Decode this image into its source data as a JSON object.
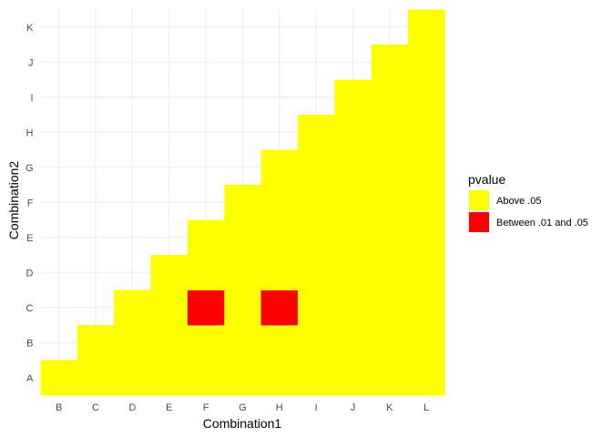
{
  "chart_data": {
    "type": "heatmap",
    "title": "",
    "xlabel": "Combination1",
    "ylabel": "Combination2",
    "x_categories": [
      "B",
      "C",
      "D",
      "E",
      "F",
      "G",
      "H",
      "I",
      "J",
      "K",
      "L"
    ],
    "y_categories": [
      "A",
      "B",
      "C",
      "D",
      "E",
      "F",
      "G",
      "H",
      "I",
      "J",
      "K"
    ],
    "grid": true,
    "legend": {
      "title": "pvalue",
      "position": "right",
      "entries": [
        {
          "label": "Above .05",
          "color": "#FFFF00"
        },
        {
          "label": "Between .01 and .05",
          "color": "#FF0000"
        }
      ]
    },
    "cells": [
      {
        "x": "B",
        "y": "A",
        "pvalue": "Above .05"
      },
      {
        "x": "C",
        "y": "A",
        "pvalue": "Above .05"
      },
      {
        "x": "C",
        "y": "B",
        "pvalue": "Above .05"
      },
      {
        "x": "D",
        "y": "A",
        "pvalue": "Above .05"
      },
      {
        "x": "D",
        "y": "B",
        "pvalue": "Above .05"
      },
      {
        "x": "D",
        "y": "C",
        "pvalue": "Above .05"
      },
      {
        "x": "E",
        "y": "A",
        "pvalue": "Above .05"
      },
      {
        "x": "E",
        "y": "B",
        "pvalue": "Above .05"
      },
      {
        "x": "E",
        "y": "C",
        "pvalue": "Above .05"
      },
      {
        "x": "E",
        "y": "D",
        "pvalue": "Above .05"
      },
      {
        "x": "F",
        "y": "A",
        "pvalue": "Above .05"
      },
      {
        "x": "F",
        "y": "B",
        "pvalue": "Above .05"
      },
      {
        "x": "F",
        "y": "C",
        "pvalue": "Between .01 and .05"
      },
      {
        "x": "F",
        "y": "D",
        "pvalue": "Above .05"
      },
      {
        "x": "F",
        "y": "E",
        "pvalue": "Above .05"
      },
      {
        "x": "G",
        "y": "A",
        "pvalue": "Above .05"
      },
      {
        "x": "G",
        "y": "B",
        "pvalue": "Above .05"
      },
      {
        "x": "G",
        "y": "C",
        "pvalue": "Above .05"
      },
      {
        "x": "G",
        "y": "D",
        "pvalue": "Above .05"
      },
      {
        "x": "G",
        "y": "E",
        "pvalue": "Above .05"
      },
      {
        "x": "G",
        "y": "F",
        "pvalue": "Above .05"
      },
      {
        "x": "H",
        "y": "A",
        "pvalue": "Above .05"
      },
      {
        "x": "H",
        "y": "B",
        "pvalue": "Above .05"
      },
      {
        "x": "H",
        "y": "C",
        "pvalue": "Between .01 and .05"
      },
      {
        "x": "H",
        "y": "D",
        "pvalue": "Above .05"
      },
      {
        "x": "H",
        "y": "E",
        "pvalue": "Above .05"
      },
      {
        "x": "H",
        "y": "F",
        "pvalue": "Above .05"
      },
      {
        "x": "H",
        "y": "G",
        "pvalue": "Above .05"
      },
      {
        "x": "I",
        "y": "A",
        "pvalue": "Above .05"
      },
      {
        "x": "I",
        "y": "B",
        "pvalue": "Above .05"
      },
      {
        "x": "I",
        "y": "C",
        "pvalue": "Above .05"
      },
      {
        "x": "I",
        "y": "D",
        "pvalue": "Above .05"
      },
      {
        "x": "I",
        "y": "E",
        "pvalue": "Above .05"
      },
      {
        "x": "I",
        "y": "F",
        "pvalue": "Above .05"
      },
      {
        "x": "I",
        "y": "G",
        "pvalue": "Above .05"
      },
      {
        "x": "I",
        "y": "H",
        "pvalue": "Above .05"
      },
      {
        "x": "J",
        "y": "A",
        "pvalue": "Above .05"
      },
      {
        "x": "J",
        "y": "B",
        "pvalue": "Above .05"
      },
      {
        "x": "J",
        "y": "C",
        "pvalue": "Above .05"
      },
      {
        "x": "J",
        "y": "D",
        "pvalue": "Above .05"
      },
      {
        "x": "J",
        "y": "E",
        "pvalue": "Above .05"
      },
      {
        "x": "J",
        "y": "F",
        "pvalue": "Above .05"
      },
      {
        "x": "J",
        "y": "G",
        "pvalue": "Above .05"
      },
      {
        "x": "J",
        "y": "H",
        "pvalue": "Above .05"
      },
      {
        "x": "J",
        "y": "I",
        "pvalue": "Above .05"
      },
      {
        "x": "K",
        "y": "A",
        "pvalue": "Above .05"
      },
      {
        "x": "K",
        "y": "B",
        "pvalue": "Above .05"
      },
      {
        "x": "K",
        "y": "C",
        "pvalue": "Above .05"
      },
      {
        "x": "K",
        "y": "D",
        "pvalue": "Above .05"
      },
      {
        "x": "K",
        "y": "E",
        "pvalue": "Above .05"
      },
      {
        "x": "K",
        "y": "F",
        "pvalue": "Above .05"
      },
      {
        "x": "K",
        "y": "G",
        "pvalue": "Above .05"
      },
      {
        "x": "K",
        "y": "H",
        "pvalue": "Above .05"
      },
      {
        "x": "K",
        "y": "I",
        "pvalue": "Above .05"
      },
      {
        "x": "K",
        "y": "J",
        "pvalue": "Above .05"
      },
      {
        "x": "L",
        "y": "A",
        "pvalue": "Above .05"
      },
      {
        "x": "L",
        "y": "B",
        "pvalue": "Above .05"
      },
      {
        "x": "L",
        "y": "C",
        "pvalue": "Above .05"
      },
      {
        "x": "L",
        "y": "D",
        "pvalue": "Above .05"
      },
      {
        "x": "L",
        "y": "E",
        "pvalue": "Above .05"
      },
      {
        "x": "L",
        "y": "F",
        "pvalue": "Above .05"
      },
      {
        "x": "L",
        "y": "G",
        "pvalue": "Above .05"
      },
      {
        "x": "L",
        "y": "H",
        "pvalue": "Above .05"
      },
      {
        "x": "L",
        "y": "I",
        "pvalue": "Above .05"
      },
      {
        "x": "L",
        "y": "J",
        "pvalue": "Above .05"
      },
      {
        "x": "L",
        "y": "K",
        "pvalue": "Above .05"
      }
    ]
  }
}
